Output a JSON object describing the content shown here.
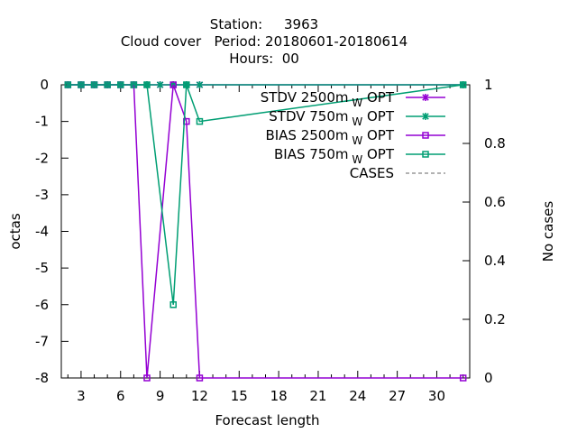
{
  "chart_data": {
    "type": "line",
    "title_lines": [
      "Station:     3963",
      "Cloud cover   Period: 20180601-20180614",
      "Hours:  00"
    ],
    "xlabel": "Forecast length",
    "ylabel": "octas",
    "y2label": "No cases",
    "xlim": [
      1.5,
      32.5
    ],
    "ylim": [
      -8,
      0
    ],
    "y2lim": [
      0,
      1
    ],
    "xticks": [
      3,
      6,
      9,
      12,
      15,
      18,
      21,
      24,
      27,
      30
    ],
    "yticks": [
      0,
      -1,
      -2,
      -3,
      -4,
      -5,
      -6,
      -7,
      -8
    ],
    "y2ticks": [
      1,
      0.8,
      0.6,
      0.4,
      0.2,
      0
    ],
    "grid": false,
    "legend_position": "top-right",
    "series": [
      {
        "name": "STDV 2500m",
        "subscript": "W",
        "suffix": " OPT",
        "color": "#9400d3",
        "marker": "x",
        "x": [
          2,
          3,
          4,
          5,
          6,
          7,
          8,
          9,
          10,
          11,
          12,
          32
        ],
        "y": [
          0,
          0,
          0,
          0,
          0,
          0,
          0,
          0,
          0,
          0,
          0,
          0
        ]
      },
      {
        "name": "STDV 750m",
        "subscript": "W",
        "suffix": " OPT",
        "color": "#009e73",
        "marker": "x",
        "x": [
          2,
          3,
          4,
          5,
          6,
          7,
          8,
          9,
          10,
          11,
          12,
          32
        ],
        "y": [
          0,
          0,
          0,
          0,
          0,
          0,
          0,
          0,
          0,
          0,
          0,
          0
        ]
      },
      {
        "name": "BIAS 2500m",
        "subscript": "W",
        "suffix": " OPT",
        "color": "#9400d3",
        "marker": "square",
        "x": [
          2,
          3,
          4,
          5,
          6,
          7,
          8,
          10,
          11,
          12,
          32
        ],
        "y": [
          0,
          0,
          0,
          0,
          0,
          0,
          -8,
          0,
          -1,
          -8,
          -8
        ]
      },
      {
        "name": "BIAS 750m",
        "subscript": "W",
        "suffix": " OPT",
        "color": "#009e73",
        "marker": "square",
        "x": [
          2,
          3,
          4,
          5,
          6,
          7,
          8,
          10,
          11,
          12,
          32
        ],
        "y": [
          0,
          0,
          0,
          0,
          0,
          0,
          0,
          -6,
          0,
          -1,
          0
        ]
      },
      {
        "name": "CASES",
        "color": "#999999",
        "marker": "none",
        "dashed": true,
        "axis": "y2",
        "x": [],
        "y": []
      }
    ]
  }
}
